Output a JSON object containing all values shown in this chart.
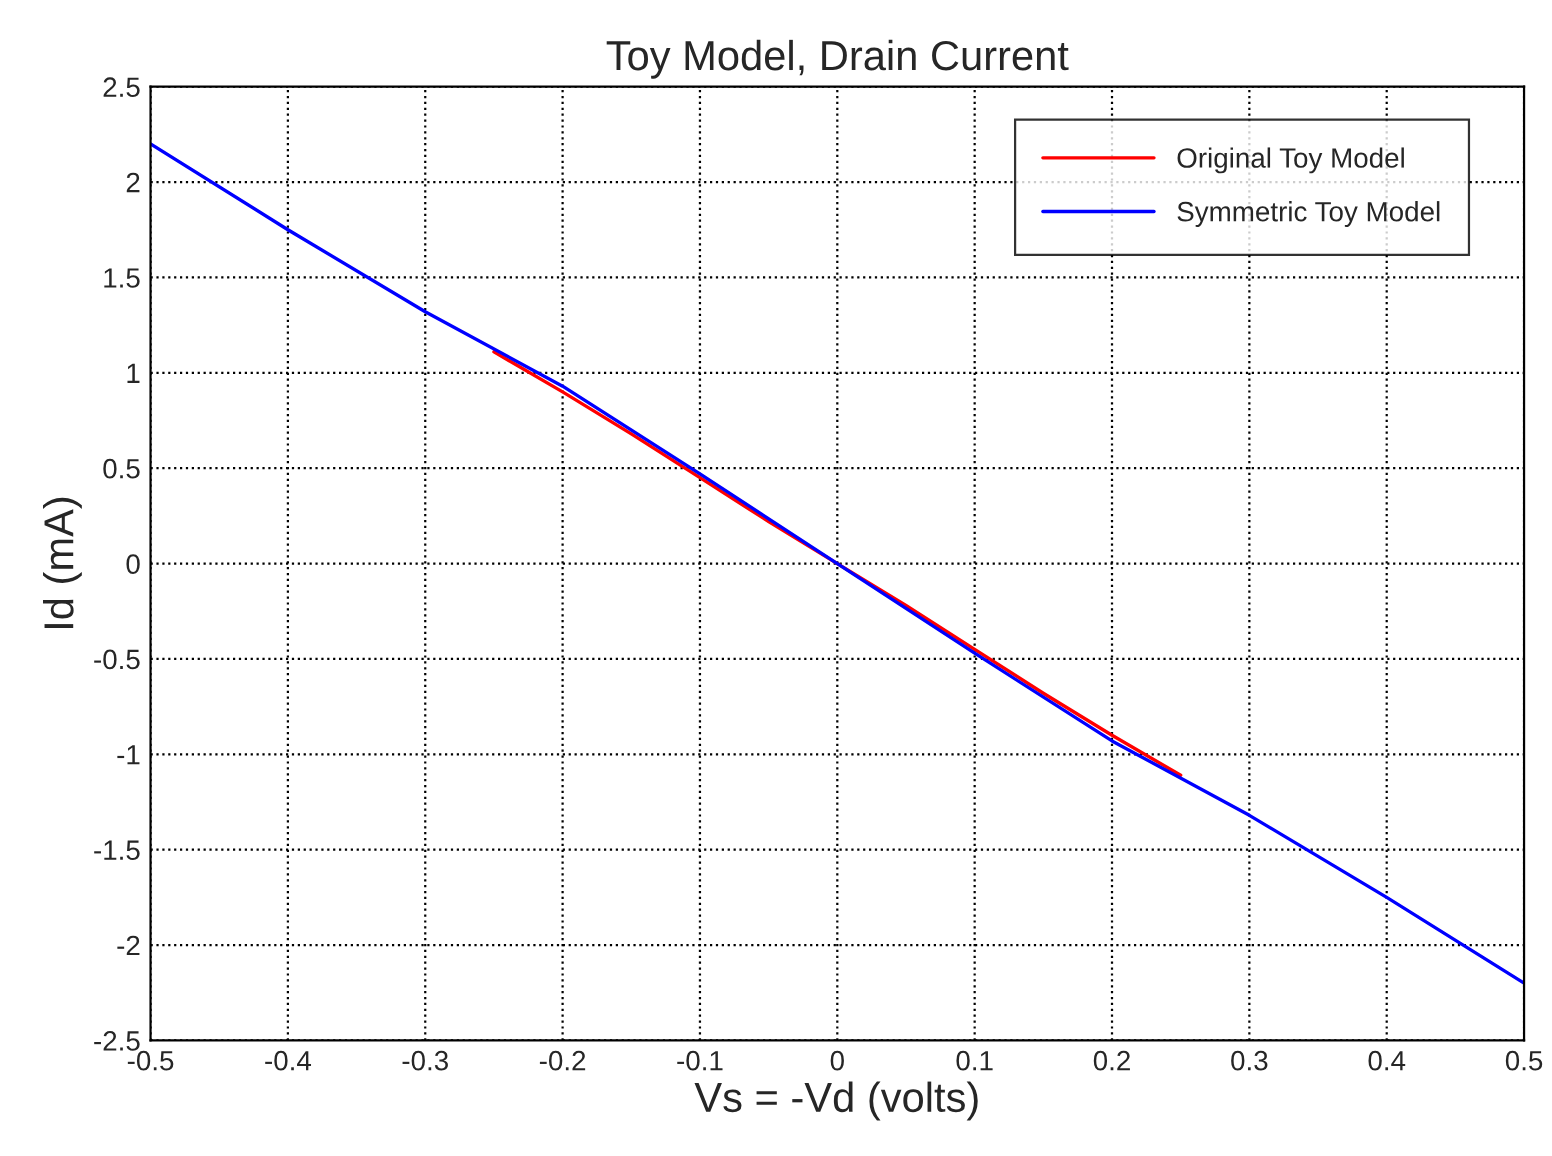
{
  "chart_data": {
    "type": "line",
    "title": "Toy Model, Drain Current",
    "xlabel": "Vs = -Vd (volts)",
    "ylabel": "Id (mA)",
    "series": [
      {
        "name": "Original Toy Model",
        "color": "#ff0000",
        "x": [
          -0.25,
          -0.2,
          -0.15,
          -0.1,
          -0.05,
          0,
          0.05,
          0.1,
          0.15,
          0.2,
          0.25
        ],
        "values": [
          1.11,
          0.9,
          0.68,
          0.45,
          0.22,
          0,
          -0.22,
          -0.45,
          -0.68,
          -0.9,
          -1.11
        ]
      },
      {
        "name": "Symmetric Toy Model",
        "color": "#0000ff",
        "x": [
          -0.5,
          -0.4,
          -0.3,
          -0.2,
          -0.1,
          0,
          0.1,
          0.2,
          0.3,
          0.4,
          0.5
        ],
        "values": [
          2.2,
          1.75,
          1.32,
          0.93,
          0.47,
          0,
          -0.47,
          -0.93,
          -1.32,
          -1.75,
          -2.2
        ]
      }
    ],
    "xlim": [
      -0.5,
      0.5
    ],
    "xticks": [
      -0.5,
      -0.4,
      -0.3,
      -0.2,
      -0.1,
      0,
      0.1,
      0.2,
      0.3,
      0.4,
      0.5
    ],
    "ylim": [
      -2.5,
      2.5
    ],
    "yticks": [
      -2.5,
      -2,
      -1.5,
      -1,
      -0.5,
      0,
      0.5,
      1,
      1.5,
      2,
      2.5
    ],
    "grid": true,
    "legend": "top right",
    "line_style": "solid",
    "marker": "none"
  }
}
